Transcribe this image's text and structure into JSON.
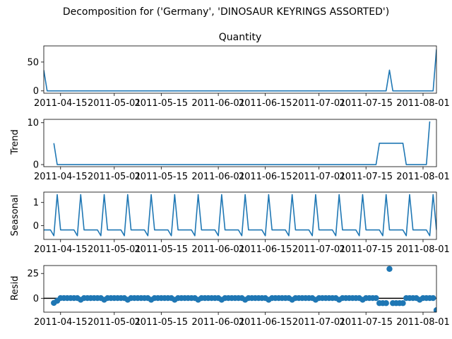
{
  "suptitle": "Decomposition for ('Germany', 'DINOSAUR KEYRINGS ASSORTED')",
  "x_tick_labels": [
    "2011-04-15",
    "2011-05-01",
    "2011-05-15",
    "2011-06-01",
    "2011-06-15",
    "2011-07-01",
    "2011-07-15",
    "2011-08-01"
  ],
  "chart_data": [
    {
      "type": "line",
      "title": "Quantity",
      "ylabel": "",
      "color": "#1f77b4",
      "x_range": [
        "2011-04-10",
        "2011-08-05"
      ],
      "ylim": [
        -4,
        78
      ],
      "yticks": [
        0,
        50
      ],
      "series": [
        {
          "x": "2011-04-10",
          "y": 36
        },
        {
          "x": "2011-04-11",
          "y": 0
        },
        {
          "x": "2011-07-21",
          "y": 0
        },
        {
          "x": "2011-07-22",
          "y": 36
        },
        {
          "x": "2011-07-23",
          "y": 0
        },
        {
          "x": "2011-08-04",
          "y": 0
        },
        {
          "x": "2011-08-05",
          "y": 72
        }
      ]
    },
    {
      "type": "line",
      "title": "",
      "ylabel": "Trend",
      "color": "#1f77b4",
      "x_range": [
        "2011-04-10",
        "2011-08-05"
      ],
      "ylim": [
        -0.5,
        10.8
      ],
      "yticks": [
        0,
        10
      ],
      "series": [
        {
          "x": "2011-04-13",
          "y": 5.1
        },
        {
          "x": "2011-04-14",
          "y": 0
        },
        {
          "x": "2011-07-18",
          "y": 0
        },
        {
          "x": "2011-07-19",
          "y": 5.1
        },
        {
          "x": "2011-07-26",
          "y": 5.1
        },
        {
          "x": "2011-07-27",
          "y": 0
        },
        {
          "x": "2011-08-02",
          "y": 0
        },
        {
          "x": "2011-08-03",
          "y": 10.3
        }
      ]
    },
    {
      "type": "line",
      "title": "",
      "ylabel": "Seasonal",
      "color": "#1f77b4",
      "x_range": [
        "2011-04-10",
        "2011-08-05"
      ],
      "ylim": [
        -0.6,
        1.45
      ],
      "yticks": [
        0,
        1
      ],
      "pattern": {
        "start": "2011-04-10",
        "period_days": 7,
        "values": [
          -0.19,
          -0.19,
          -0.19,
          -0.44,
          1.34,
          -0.19,
          -0.19
        ]
      }
    },
    {
      "type": "scatter",
      "title": "",
      "ylabel": "Resid",
      "color": "#1f77b4",
      "x_range": [
        "2011-04-10",
        "2011-08-05"
      ],
      "ylim": [
        -14,
        33
      ],
      "yticks": [
        0,
        25
      ],
      "hline": 0,
      "series": [
        {
          "x": "2011-04-13",
          "y": -4.7
        },
        {
          "x": "2011-04-14",
          "y": -2.5
        },
        {
          "x": "2011-04-15",
          "y": 0.2
        },
        {
          "x": "2011-04-16",
          "y": 0.2
        },
        {
          "x": "2011-04-17",
          "y": 0.2
        },
        {
          "x": "2011-04-18",
          "y": 0.2
        },
        {
          "x": "2011-04-19",
          "y": 0.2
        },
        {
          "x": "2011-04-20",
          "y": 0.2
        },
        {
          "x": "2011-04-21",
          "y": -1.5
        },
        {
          "x": "2011-04-22",
          "y": 0.2
        },
        {
          "x": "2011-04-23",
          "y": 0.2
        },
        {
          "x": "2011-04-24",
          "y": 0.2
        },
        {
          "x": "2011-04-25",
          "y": 0.2
        },
        {
          "x": "2011-04-26",
          "y": 0.2
        },
        {
          "x": "2011-04-27",
          "y": 0.2
        },
        {
          "x": "2011-04-28",
          "y": -1.5
        },
        {
          "x": "2011-04-29",
          "y": 0.2
        },
        {
          "x": "2011-04-30",
          "y": 0.2
        },
        {
          "x": "2011-05-01",
          "y": 0.2
        },
        {
          "x": "2011-05-02",
          "y": 0.2
        },
        {
          "x": "2011-05-03",
          "y": 0.2
        },
        {
          "x": "2011-05-04",
          "y": 0.2
        },
        {
          "x": "2011-05-05",
          "y": -1.5
        },
        {
          "x": "2011-05-06",
          "y": 0.2
        },
        {
          "x": "2011-05-07",
          "y": 0.2
        },
        {
          "x": "2011-05-08",
          "y": 0.2
        },
        {
          "x": "2011-05-09",
          "y": 0.2
        },
        {
          "x": "2011-05-10",
          "y": 0.2
        },
        {
          "x": "2011-05-11",
          "y": 0.2
        },
        {
          "x": "2011-05-12",
          "y": -1.5
        },
        {
          "x": "2011-05-13",
          "y": 0.2
        },
        {
          "x": "2011-05-14",
          "y": 0.2
        },
        {
          "x": "2011-05-15",
          "y": 0.2
        },
        {
          "x": "2011-05-16",
          "y": 0.2
        },
        {
          "x": "2011-05-17",
          "y": 0.2
        },
        {
          "x": "2011-05-18",
          "y": 0.2
        },
        {
          "x": "2011-05-19",
          "y": -1.5
        },
        {
          "x": "2011-05-20",
          "y": 0.2
        },
        {
          "x": "2011-05-21",
          "y": 0.2
        },
        {
          "x": "2011-05-22",
          "y": 0.2
        },
        {
          "x": "2011-05-23",
          "y": 0.2
        },
        {
          "x": "2011-05-24",
          "y": 0.2
        },
        {
          "x": "2011-05-25",
          "y": 0.2
        },
        {
          "x": "2011-05-26",
          "y": -1.5
        },
        {
          "x": "2011-05-27",
          "y": 0.2
        },
        {
          "x": "2011-05-28",
          "y": 0.2
        },
        {
          "x": "2011-05-29",
          "y": 0.2
        },
        {
          "x": "2011-05-30",
          "y": 0.2
        },
        {
          "x": "2011-05-31",
          "y": 0.2
        },
        {
          "x": "2011-06-01",
          "y": 0.2
        },
        {
          "x": "2011-06-02",
          "y": -1.5
        },
        {
          "x": "2011-06-03",
          "y": 0.2
        },
        {
          "x": "2011-06-04",
          "y": 0.2
        },
        {
          "x": "2011-06-05",
          "y": 0.2
        },
        {
          "x": "2011-06-06",
          "y": 0.2
        },
        {
          "x": "2011-06-07",
          "y": 0.2
        },
        {
          "x": "2011-06-08",
          "y": 0.2
        },
        {
          "x": "2011-06-09",
          "y": -1.5
        },
        {
          "x": "2011-06-10",
          "y": 0.2
        },
        {
          "x": "2011-06-11",
          "y": 0.2
        },
        {
          "x": "2011-06-12",
          "y": 0.2
        },
        {
          "x": "2011-06-13",
          "y": 0.2
        },
        {
          "x": "2011-06-14",
          "y": 0.2
        },
        {
          "x": "2011-06-15",
          "y": 0.2
        },
        {
          "x": "2011-06-16",
          "y": -1.5
        },
        {
          "x": "2011-06-17",
          "y": 0.2
        },
        {
          "x": "2011-06-18",
          "y": 0.2
        },
        {
          "x": "2011-06-19",
          "y": 0.2
        },
        {
          "x": "2011-06-20",
          "y": 0.2
        },
        {
          "x": "2011-06-21",
          "y": 0.2
        },
        {
          "x": "2011-06-22",
          "y": 0.2
        },
        {
          "x": "2011-06-23",
          "y": -1.5
        },
        {
          "x": "2011-06-24",
          "y": 0.2
        },
        {
          "x": "2011-06-25",
          "y": 0.2
        },
        {
          "x": "2011-06-26",
          "y": 0.2
        },
        {
          "x": "2011-06-27",
          "y": 0.2
        },
        {
          "x": "2011-06-28",
          "y": 0.2
        },
        {
          "x": "2011-06-29",
          "y": 0.2
        },
        {
          "x": "2011-06-30",
          "y": -1.5
        },
        {
          "x": "2011-07-01",
          "y": 0.2
        },
        {
          "x": "2011-07-02",
          "y": 0.2
        },
        {
          "x": "2011-07-03",
          "y": 0.2
        },
        {
          "x": "2011-07-04",
          "y": 0.2
        },
        {
          "x": "2011-07-05",
          "y": 0.2
        },
        {
          "x": "2011-07-06",
          "y": 0.2
        },
        {
          "x": "2011-07-07",
          "y": -1.5
        },
        {
          "x": "2011-07-08",
          "y": 0.2
        },
        {
          "x": "2011-07-09",
          "y": 0.2
        },
        {
          "x": "2011-07-10",
          "y": 0.2
        },
        {
          "x": "2011-07-11",
          "y": 0.2
        },
        {
          "x": "2011-07-12",
          "y": 0.2
        },
        {
          "x": "2011-07-13",
          "y": 0.2
        },
        {
          "x": "2011-07-14",
          "y": -1.5
        },
        {
          "x": "2011-07-15",
          "y": 0.2
        },
        {
          "x": "2011-07-16",
          "y": 0.2
        },
        {
          "x": "2011-07-17",
          "y": 0.2
        },
        {
          "x": "2011-07-18",
          "y": 0.2
        },
        {
          "x": "2011-07-19",
          "y": -4.9
        },
        {
          "x": "2011-07-20",
          "y": -4.9
        },
        {
          "x": "2011-07-21",
          "y": -4.9
        },
        {
          "x": "2011-07-22",
          "y": 29.6
        },
        {
          "x": "2011-07-23",
          "y": -4.9
        },
        {
          "x": "2011-07-24",
          "y": -4.9
        },
        {
          "x": "2011-07-25",
          "y": -4.9
        },
        {
          "x": "2011-07-26",
          "y": -4.9
        },
        {
          "x": "2011-07-27",
          "y": 0.2
        },
        {
          "x": "2011-07-28",
          "y": 0.2
        },
        {
          "x": "2011-07-29",
          "y": 0.2
        },
        {
          "x": "2011-07-30",
          "y": 0.2
        },
        {
          "x": "2011-07-31",
          "y": -1.5
        },
        {
          "x": "2011-08-01",
          "y": 0.2
        },
        {
          "x": "2011-08-02",
          "y": 0.2
        },
        {
          "x": "2011-08-03",
          "y": 0.2
        },
        {
          "x": "2011-08-04",
          "y": 0.2
        },
        {
          "x": "2011-08-05",
          "y": -12.0
        }
      ]
    }
  ]
}
